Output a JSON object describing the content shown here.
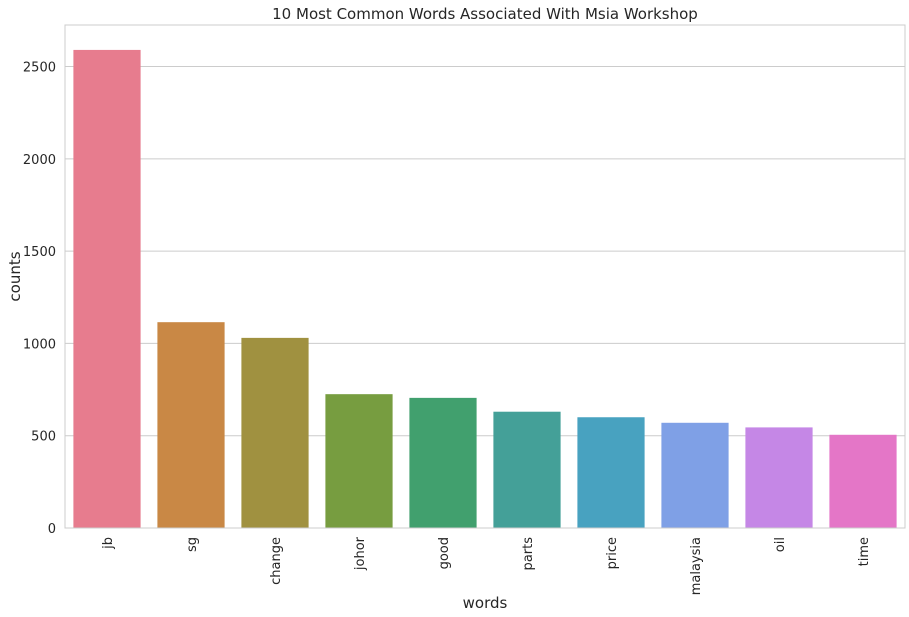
{
  "chart_data": {
    "type": "bar",
    "title": "10 Most Common Words Associated With Msia Workshop",
    "xlabel": "words",
    "ylabel": "counts",
    "categories": [
      "jb",
      "sg",
      "change",
      "johor",
      "good",
      "parts",
      "price",
      "malaysia",
      "oil",
      "time"
    ],
    "values": [
      2590,
      1115,
      1030,
      725,
      705,
      630,
      600,
      570,
      545,
      505
    ],
    "colors": [
      "#e77c8e",
      "#c98845",
      "#a09140",
      "#779d40",
      "#41a06e",
      "#44a098",
      "#48a2c0",
      "#7fa0e6",
      "#c587e6",
      "#e476c7"
    ],
    "ylim": [
      0,
      2725
    ],
    "yticks": [
      0,
      500,
      1000,
      1500,
      2000,
      2500
    ],
    "grid": "horizontal",
    "legend": "none"
  }
}
